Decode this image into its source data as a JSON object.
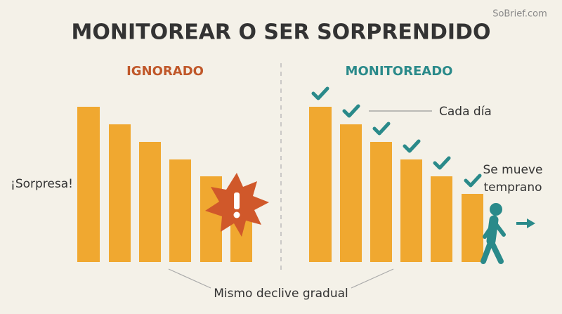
{
  "header": {
    "title": "MONITOREAR O SER SORPRENDIDO",
    "watermark": "SoBrief.com"
  },
  "left": {
    "label": "IGNORADO",
    "annotation": "¡Sorpresa!"
  },
  "right": {
    "label": "MONITOREADO",
    "annotations": [
      "Cada día",
      "Se mueve",
      "temprano"
    ]
  },
  "footer": {
    "caption": "Mismo declive gradual"
  }
}
